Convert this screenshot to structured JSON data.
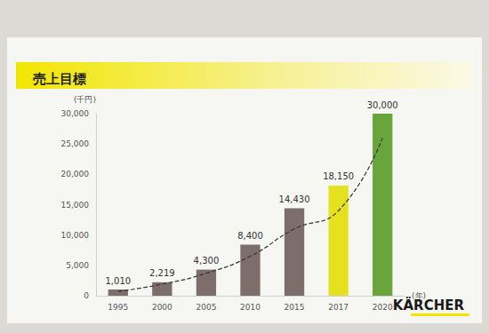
{
  "chart_data": {
    "type": "bar",
    "title": "売上目標",
    "y_label": "(千円)",
    "x_label": "(年)",
    "categories": [
      "1995",
      "2000",
      "2005",
      "2010",
      "2015",
      "2017",
      "2020"
    ],
    "series": [
      {
        "type": "bar",
        "values": [
          1010,
          2219,
          4300,
          8400,
          14430,
          18150,
          30000
        ],
        "value_labels": [
          "1,010",
          "2,219",
          "4,300",
          "8,400",
          "14,430",
          "18,150",
          "30,000"
        ],
        "colors": [
          "#7d6e6b",
          "#7d6e6b",
          "#7d6e6b",
          "#7d6e6b",
          "#7d6e6b",
          "#e6e11e",
          "#6aa53c"
        ]
      },
      {
        "type": "line",
        "line_style": "dashed",
        "color": "#333333",
        "values": [
          700,
          1900,
          3700,
          6500,
          11000,
          14000,
          26000
        ]
      }
    ],
    "ylim": [
      0,
      30000
    ],
    "yticks": [
      0,
      {
        "value": 5000,
        "label": "5,000"
      },
      {
        "value": 10000,
        "label": "10,000"
      },
      {
        "value": 15000,
        "label": "15,000"
      },
      {
        "value": 20000,
        "label": "20,000"
      },
      {
        "value": 25000,
        "label": "25,000"
      },
      {
        "value": 30000,
        "label": "30,000"
      }
    ],
    "grid": false,
    "data_labels": true,
    "annotations": [
      "KÄRCHER"
    ]
  }
}
